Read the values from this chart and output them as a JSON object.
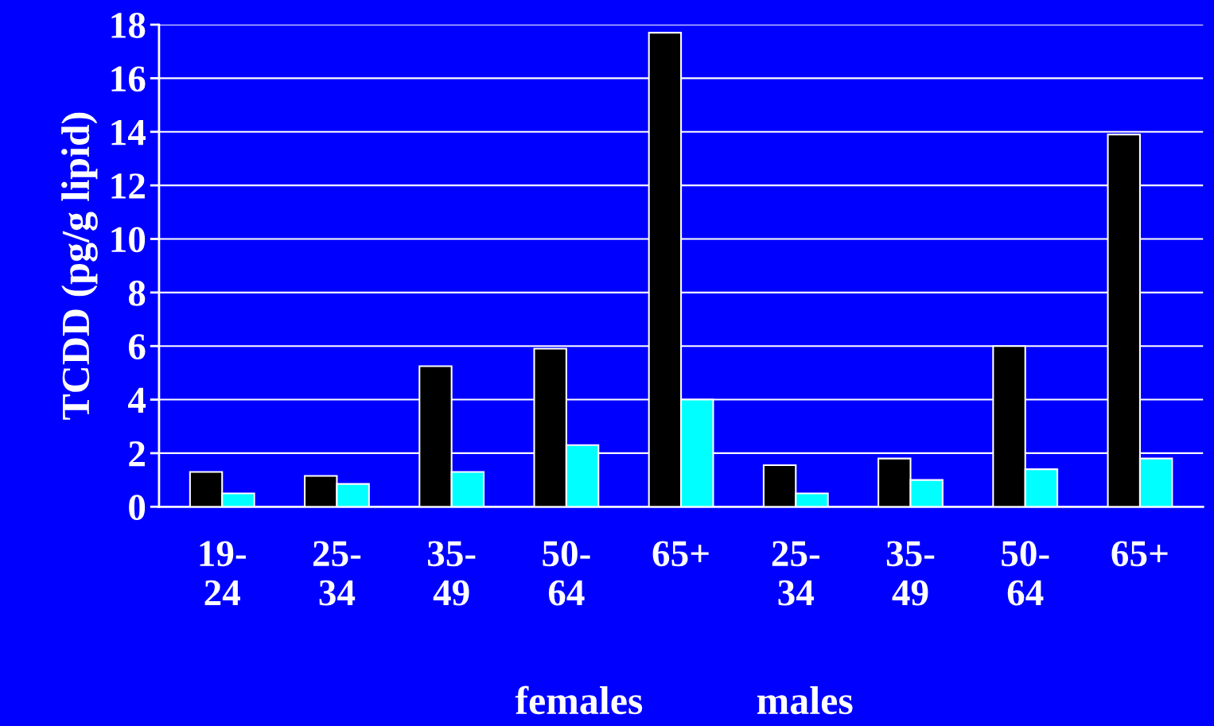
{
  "chart_data": {
    "type": "bar",
    "ylabel": "TCDD (pg/g lipid)",
    "categories": [
      "19-\n24",
      "25-\n34",
      "35-\n49",
      "50-\n64",
      "65+",
      "25-\n34",
      "35-\n49",
      "50-\n64",
      "65+"
    ],
    "series": [
      {
        "color": "#000000",
        "values": [
          1.3,
          1.15,
          5.25,
          5.9,
          17.7,
          1.55,
          1.8,
          6.0,
          13.9
        ]
      },
      {
        "color": "#00ffff",
        "values": [
          0.5,
          0.85,
          1.3,
          2.3,
          4.0,
          0.5,
          1.0,
          1.4,
          1.8
        ]
      }
    ],
    "ylim": [
      0,
      18
    ],
    "yticks": [
      0,
      2,
      4,
      6,
      8,
      10,
      12,
      14,
      16,
      18
    ],
    "grid": "y",
    "annotations": [
      "females",
      "males"
    ]
  }
}
